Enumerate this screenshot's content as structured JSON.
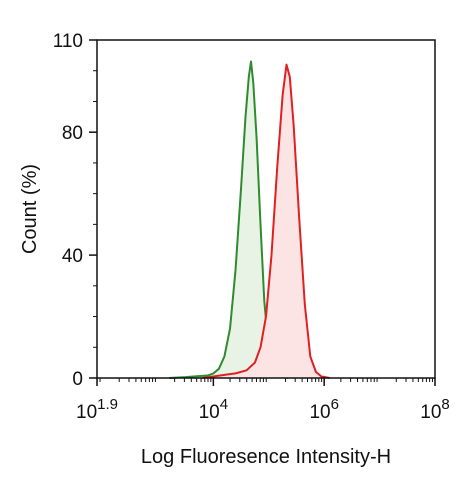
{
  "chart_data": {
    "type": "line",
    "x_scale": "log10",
    "xlim": [
      1.9,
      8
    ],
    "ylim": [
      0,
      110
    ],
    "xlabel": "Log Fluoresence Intensity-H",
    "ylabel": "Count  (%)",
    "y_ticks": [
      "0",
      "40",
      "80",
      "110"
    ],
    "y_tick_values": [
      0,
      40,
      80,
      110
    ],
    "x_ticks": [
      {
        "base": "10",
        "exp": "1.9",
        "value": 1.9
      },
      {
        "base": "10",
        "exp": "4",
        "value": 4
      },
      {
        "base": "10",
        "exp": "6",
        "value": 6
      },
      {
        "base": "10",
        "exp": "8",
        "value": 8
      }
    ],
    "grid": false,
    "series": [
      {
        "color": "#2e8b2e",
        "fill": "#e8f3e6",
        "points": [
          [
            3.2,
            0
          ],
          [
            3.5,
            0.3
          ],
          [
            3.7,
            0.6
          ],
          [
            3.9,
            0.8
          ],
          [
            4.0,
            1.5
          ],
          [
            4.1,
            3
          ],
          [
            4.2,
            7
          ],
          [
            4.3,
            16
          ],
          [
            4.4,
            35
          ],
          [
            4.5,
            62
          ],
          [
            4.58,
            85
          ],
          [
            4.64,
            98
          ],
          [
            4.68,
            103
          ],
          [
            4.72,
            96
          ],
          [
            4.78,
            78
          ],
          [
            4.85,
            50
          ],
          [
            4.92,
            25
          ],
          [
            5.0,
            9
          ],
          [
            5.1,
            2.5
          ],
          [
            5.2,
            0.8
          ],
          [
            5.35,
            0
          ]
        ]
      },
      {
        "color": "#e02020",
        "fill": "#fce4e4",
        "points": [
          [
            3.8,
            0
          ],
          [
            4.0,
            0.5
          ],
          [
            4.2,
            1
          ],
          [
            4.4,
            1.5
          ],
          [
            4.6,
            2.5
          ],
          [
            4.75,
            5
          ],
          [
            4.85,
            10
          ],
          [
            4.95,
            20
          ],
          [
            5.05,
            40
          ],
          [
            5.15,
            68
          ],
          [
            5.25,
            92
          ],
          [
            5.32,
            102
          ],
          [
            5.38,
            98
          ],
          [
            5.45,
            82
          ],
          [
            5.55,
            52
          ],
          [
            5.65,
            24
          ],
          [
            5.75,
            7
          ],
          [
            5.85,
            2
          ],
          [
            5.95,
            0.5
          ],
          [
            6.1,
            0
          ]
        ]
      }
    ]
  }
}
